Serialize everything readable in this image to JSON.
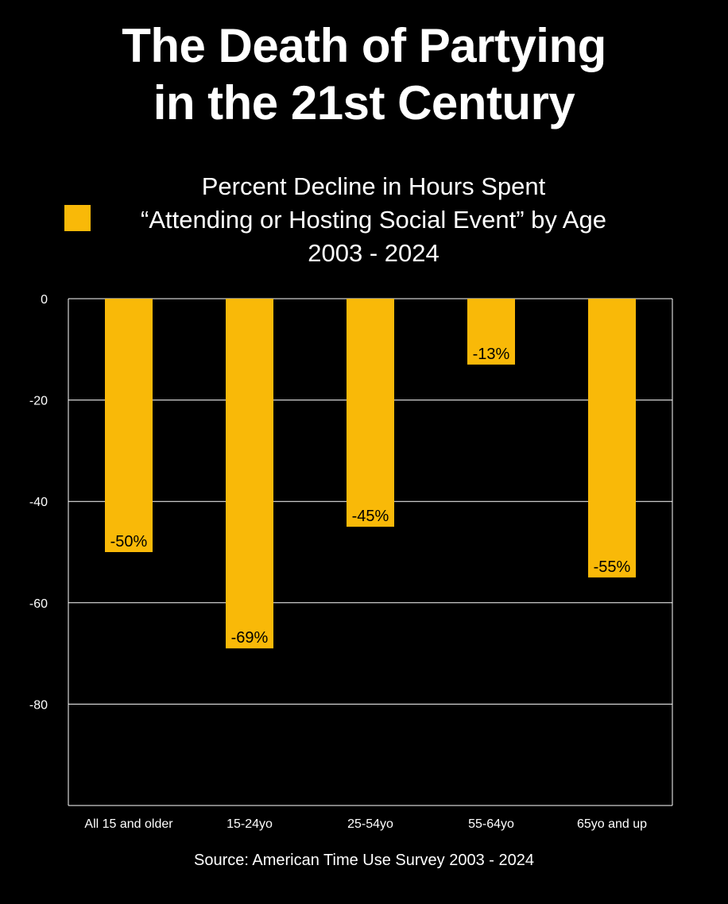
{
  "title": {
    "line1": "The Death of Partying",
    "line2": "in the 21st Century"
  },
  "subtitle": {
    "line1": "Percent Decline in Hours Spent",
    "line2": "“Attending or Hosting Social Event” by Age",
    "line3": "2003 - 2024"
  },
  "source": "Source: American Time Use Survey 2003 - 2024",
  "colors": {
    "background": "#000000",
    "bar": "#F9B908",
    "text": "#FFFFFF",
    "grid": "#FFFFFF",
    "label": "#000000"
  },
  "chart_data": {
    "type": "bar",
    "categories": [
      "All 15 and older",
      "15-24yo",
      "25-54yo",
      "55-64yo",
      "65yo and up"
    ],
    "values": [
      -50,
      -69,
      -45,
      -13,
      -55
    ],
    "data_labels": [
      "-50%",
      "-69%",
      "-45%",
      "-13%",
      "-55%"
    ],
    "y_ticks": [
      0,
      -20,
      -40,
      -60,
      -80
    ],
    "ylim": [
      -100,
      0
    ],
    "grid": true,
    "legend": "top-left",
    "xlabel": "",
    "ylabel": ""
  }
}
